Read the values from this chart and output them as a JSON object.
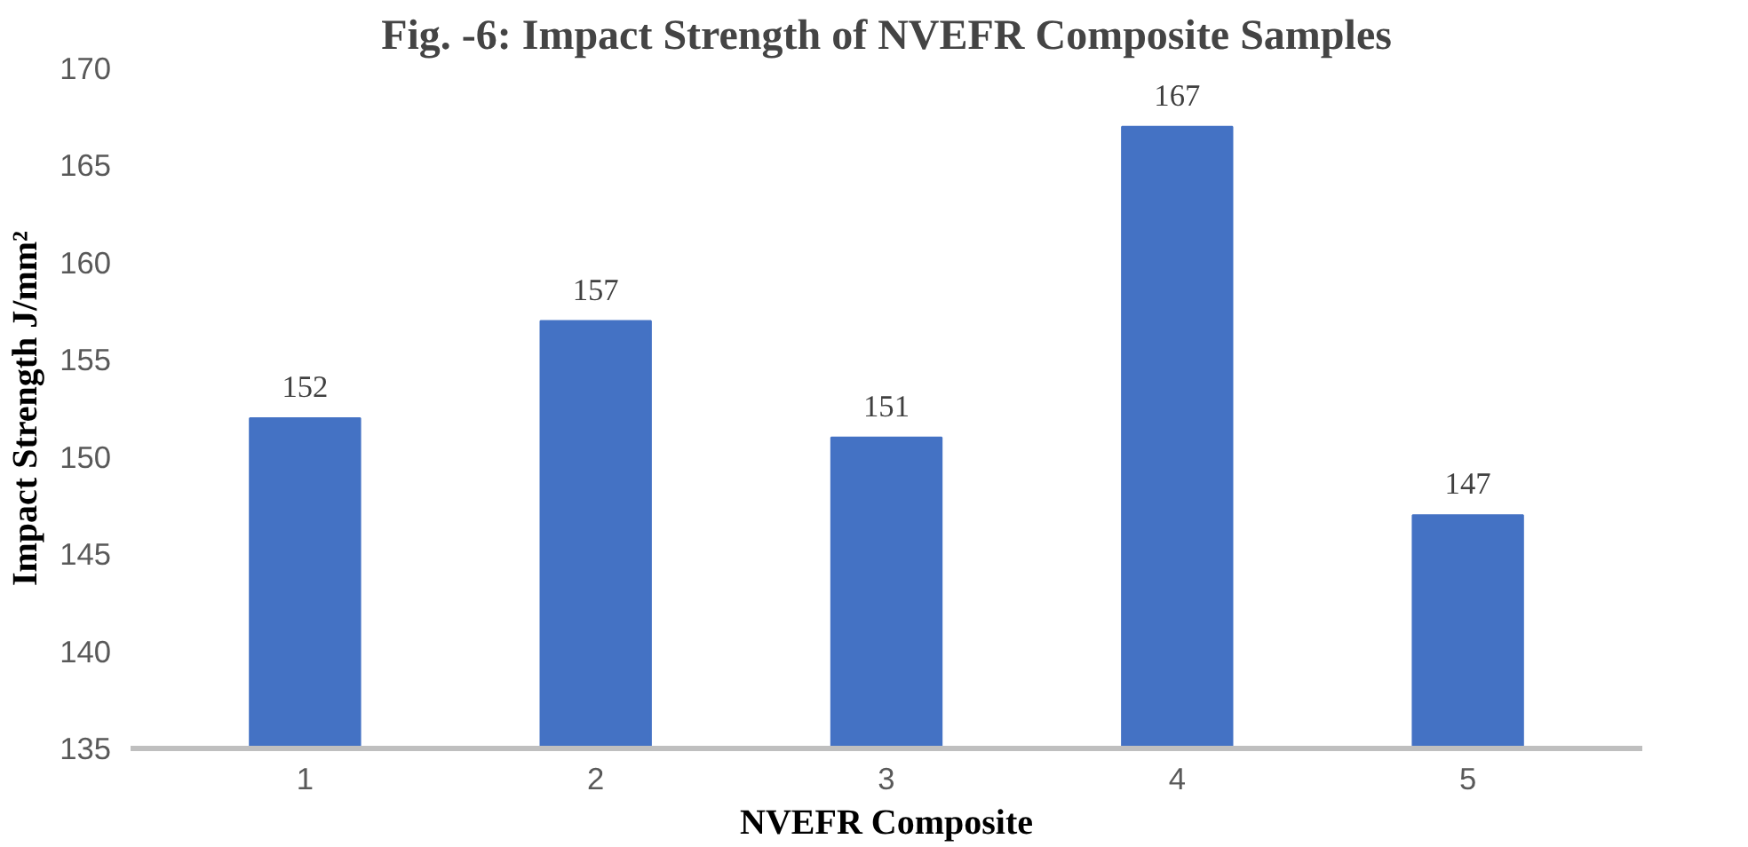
{
  "chart_data": {
    "type": "bar",
    "title": "Fig. -6: Impact Strength of NVEFR Composite Samples",
    "xlabel": "NVEFR Composite",
    "ylabel": "Impact Strength J/mm²",
    "categories": [
      "1",
      "2",
      "3",
      "4",
      "5"
    ],
    "values": [
      152,
      157,
      151,
      167,
      147
    ],
    "color": "#4472c4",
    "ylim": [
      135,
      170
    ],
    "yticks": [
      135,
      140,
      145,
      150,
      155,
      160,
      165,
      170
    ],
    "grid": false,
    "data_labels": true
  }
}
